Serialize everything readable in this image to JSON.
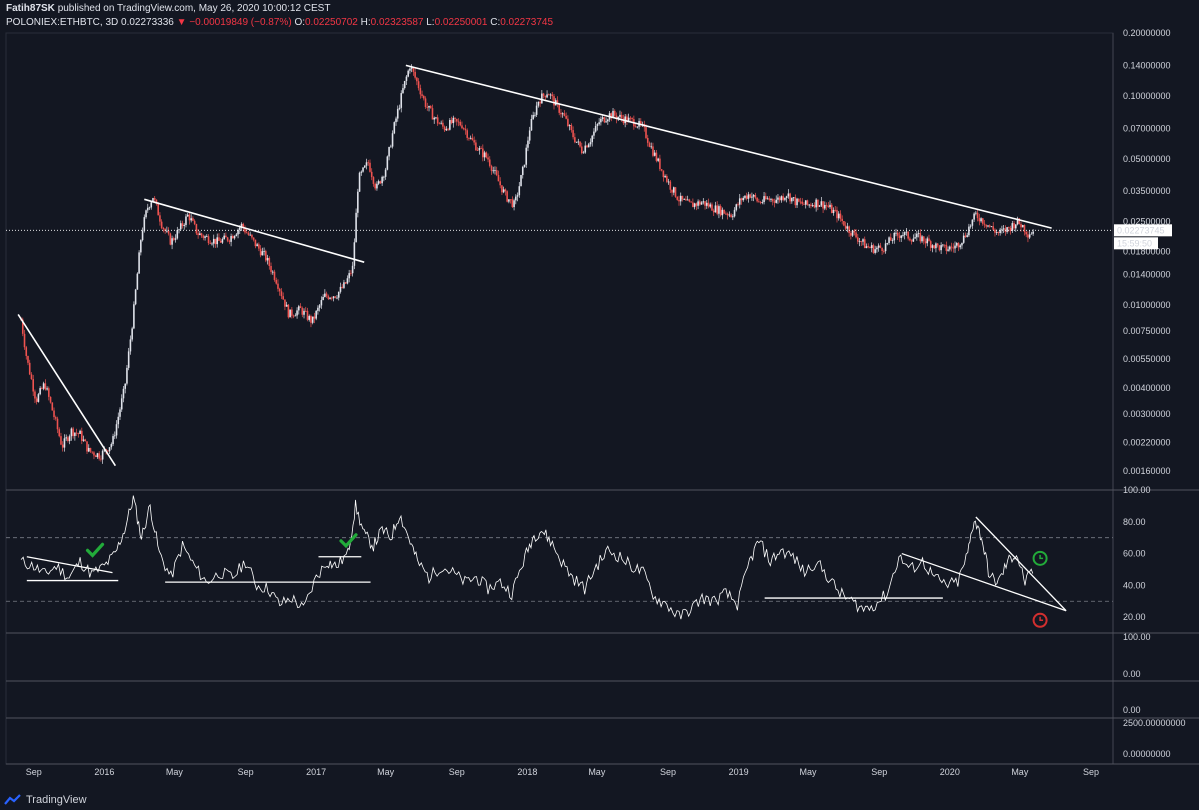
{
  "header": {
    "author": "Fatih87SK",
    "published": "published on TradingView.com, May 26, 2020 10:00:12 CEST",
    "symbol": "POLONIEX:ETHBTC, 3D",
    "last": "0.02273336",
    "change": "−0.00019849 (−0.87%)",
    "o_label": "O:",
    "o": "0.02250702",
    "h_label": "H:",
    "h": "0.02323587",
    "l_label": "L:",
    "l": "0.02250001",
    "c_label": "C:",
    "c": "0.02273745"
  },
  "footer": {
    "brand": "TradingView"
  },
  "colors": {
    "up": "#e0e3eb",
    "down": "#ef5350",
    "bg": "#131722",
    "accent_green": "#22ab3a",
    "accent_red": "#d32f2f"
  },
  "chart_data": [
    {
      "type": "candlestick",
      "scale": "log",
      "ylim": [
        0.0013,
        0.2
      ],
      "yticks": [
        "0.20000000",
        "0.14000000",
        "0.10000000",
        "0.07000000",
        "0.05000000",
        "0.03500000",
        "0.02500000",
        "0.01800000",
        "0.01400000",
        "0.01000000",
        "0.00750000",
        "0.00550000",
        "0.00400000",
        "0.00300000",
        "0.00220000",
        "0.00160000"
      ],
      "last_price_label": "0.02273745",
      "countdown_label": "15:59:50",
      "x_ticks": [
        "Sep",
        "2016",
        "May",
        "Sep",
        "2017",
        "May",
        "Sep",
        "2018",
        "May",
        "Sep",
        "2019",
        "May",
        "Sep",
        "2020",
        "May",
        "Sep"
      ],
      "price_series": [
        [
          "2015-08-10",
          0.0085
        ],
        [
          "2015-08-20",
          0.0055
        ],
        [
          "2015-09-05",
          0.0035
        ],
        [
          "2015-09-20",
          0.0042
        ],
        [
          "2015-10-05",
          0.003
        ],
        [
          "2015-10-20",
          0.0021
        ],
        [
          "2015-11-05",
          0.0025
        ],
        [
          "2015-11-20",
          0.0024
        ],
        [
          "2015-12-05",
          0.002
        ],
        [
          "2015-12-25",
          0.0019
        ],
        [
          "2016-01-15",
          0.0022
        ],
        [
          "2016-02-05",
          0.004
        ],
        [
          "2016-02-20",
          0.009
        ],
        [
          "2016-03-05",
          0.022
        ],
        [
          "2016-03-15",
          0.029
        ],
        [
          "2016-03-25",
          0.033
        ],
        [
          "2016-04-10",
          0.024
        ],
        [
          "2016-04-25",
          0.02
        ],
        [
          "2016-05-10",
          0.023
        ],
        [
          "2016-05-25",
          0.027
        ],
        [
          "2016-06-10",
          0.022
        ],
        [
          "2016-06-25",
          0.021
        ],
        [
          "2016-07-15",
          0.02
        ],
        [
          "2016-08-05",
          0.021
        ],
        [
          "2016-08-25",
          0.024
        ],
        [
          "2016-09-15",
          0.02
        ],
        [
          "2016-10-05",
          0.017
        ],
        [
          "2016-10-25",
          0.013
        ],
        [
          "2016-11-15",
          0.009
        ],
        [
          "2016-12-05",
          0.0095
        ],
        [
          "2016-12-25",
          0.0083
        ],
        [
          "2017-01-15",
          0.011
        ],
        [
          "2017-02-05",
          0.0112
        ],
        [
          "2017-02-20",
          0.0125
        ],
        [
          "2017-03-05",
          0.015
        ],
        [
          "2017-03-15",
          0.04
        ],
        [
          "2017-04-01",
          0.048
        ],
        [
          "2017-04-15",
          0.036
        ],
        [
          "2017-05-01",
          0.045
        ],
        [
          "2017-05-15",
          0.07
        ],
        [
          "2017-06-01",
          0.11
        ],
        [
          "2017-06-12",
          0.14
        ],
        [
          "2017-06-25",
          0.115
        ],
        [
          "2017-07-10",
          0.09
        ],
        [
          "2017-07-25",
          0.078
        ],
        [
          "2017-08-10",
          0.07
        ],
        [
          "2017-08-25",
          0.075
        ],
        [
          "2017-09-10",
          0.073
        ],
        [
          "2017-09-25",
          0.062
        ],
        [
          "2017-10-10",
          0.055
        ],
        [
          "2017-10-25",
          0.05
        ],
        [
          "2017-11-10",
          0.04
        ],
        [
          "2017-11-25",
          0.033
        ],
        [
          "2017-12-10",
          0.03
        ],
        [
          "2017-12-25",
          0.045
        ],
        [
          "2018-01-05",
          0.07
        ],
        [
          "2018-01-20",
          0.095
        ],
        [
          "2018-02-05",
          0.105
        ],
        [
          "2018-02-20",
          0.09
        ],
        [
          "2018-03-05",
          0.08
        ],
        [
          "2018-03-20",
          0.065
        ],
        [
          "2018-04-05",
          0.055
        ],
        [
          "2018-04-20",
          0.062
        ],
        [
          "2018-05-05",
          0.075
        ],
        [
          "2018-05-25",
          0.082
        ],
        [
          "2018-06-15",
          0.078
        ],
        [
          "2018-07-05",
          0.075
        ],
        [
          "2018-07-20",
          0.07
        ],
        [
          "2018-08-05",
          0.055
        ],
        [
          "2018-08-20",
          0.045
        ],
        [
          "2018-09-05",
          0.037
        ],
        [
          "2018-09-20",
          0.032
        ],
        [
          "2018-10-10",
          0.03
        ],
        [
          "2018-10-30",
          0.031
        ],
        [
          "2018-11-20",
          0.029
        ],
        [
          "2018-12-05",
          0.028
        ],
        [
          "2018-12-20",
          0.027
        ],
        [
          "2019-01-05",
          0.032
        ],
        [
          "2019-01-20",
          0.034
        ],
        [
          "2019-02-05",
          0.031
        ],
        [
          "2019-02-20",
          0.032
        ],
        [
          "2019-03-10",
          0.032
        ],
        [
          "2019-03-25",
          0.034
        ],
        [
          "2019-04-10",
          0.031
        ],
        [
          "2019-04-30",
          0.03
        ],
        [
          "2019-05-15",
          0.031
        ],
        [
          "2019-06-01",
          0.03
        ],
        [
          "2019-06-20",
          0.027
        ],
        [
          "2019-07-10",
          0.023
        ],
        [
          "2019-07-25",
          0.021
        ],
        [
          "2019-08-10",
          0.019
        ],
        [
          "2019-08-25",
          0.0185
        ],
        [
          "2019-09-10",
          0.019
        ],
        [
          "2019-09-25",
          0.021
        ],
        [
          "2019-10-10",
          0.022
        ],
        [
          "2019-10-25",
          0.021
        ],
        [
          "2019-11-10",
          0.021
        ],
        [
          "2019-11-25",
          0.02
        ],
        [
          "2019-12-10",
          0.019
        ],
        [
          "2019-12-25",
          0.0185
        ],
        [
          "2020-01-10",
          0.019
        ],
        [
          "2020-01-25",
          0.021
        ],
        [
          "2020-02-05",
          0.024
        ],
        [
          "2020-02-15",
          0.027
        ],
        [
          "2020-03-01",
          0.025
        ],
        [
          "2020-03-15",
          0.023
        ],
        [
          "2020-03-25",
          0.022
        ],
        [
          "2020-04-10",
          0.023
        ],
        [
          "2020-04-25",
          0.025
        ],
        [
          "2020-05-05",
          0.024
        ],
        [
          "2020-05-15",
          0.022
        ],
        [
          "2020-05-26",
          0.0227
        ]
      ],
      "trendlines": [
        [
          [
            "2015-08-05",
            0.009
          ],
          [
            "2016-01-20",
            0.0017
          ]
        ],
        [
          [
            "2016-03-10",
            0.032
          ],
          [
            "2017-03-25",
            0.016
          ]
        ],
        [
          [
            "2017-06-05",
            0.14
          ],
          [
            "2020-06-25",
            0.0233
          ]
        ]
      ]
    },
    {
      "type": "line",
      "name": "RSI",
      "ylim": [
        10,
        100
      ],
      "yticks": [
        "100.00",
        "80.00",
        "60.00",
        "40.00",
        "20.00"
      ],
      "bands": [
        70,
        30
      ],
      "values": [
        [
          "2015-08-10",
          55
        ],
        [
          "2015-09-01",
          52
        ],
        [
          "2015-09-20",
          47
        ],
        [
          "2015-10-10",
          52
        ],
        [
          "2015-11-01",
          45
        ],
        [
          "2015-11-20",
          55
        ],
        [
          "2015-12-10",
          47
        ],
        [
          "2016-01-01",
          52
        ],
        [
          "2016-01-20",
          60
        ],
        [
          "2016-02-05",
          75
        ],
        [
          "2016-02-20",
          95
        ],
        [
          "2016-03-05",
          70
        ],
        [
          "2016-03-20",
          90
        ],
        [
          "2016-04-05",
          60
        ],
        [
          "2016-04-25",
          45
        ],
        [
          "2016-05-15",
          65
        ],
        [
          "2016-06-05",
          52
        ],
        [
          "2016-06-25",
          42
        ],
        [
          "2016-07-20",
          48
        ],
        [
          "2016-08-10",
          45
        ],
        [
          "2016-09-01",
          55
        ],
        [
          "2016-09-20",
          40
        ],
        [
          "2016-10-10",
          38
        ],
        [
          "2016-10-30",
          28
        ],
        [
          "2016-11-20",
          32
        ],
        [
          "2016-12-10",
          25
        ],
        [
          "2017-01-01",
          45
        ],
        [
          "2017-01-20",
          55
        ],
        [
          "2017-02-05",
          52
        ],
        [
          "2017-02-25",
          60
        ],
        [
          "2017-03-10",
          90
        ],
        [
          "2017-03-25",
          72
        ],
        [
          "2017-04-10",
          65
        ],
        [
          "2017-04-25",
          75
        ],
        [
          "2017-05-10",
          70
        ],
        [
          "2017-05-25",
          85
        ],
        [
          "2017-06-10",
          70
        ],
        [
          "2017-06-25",
          55
        ],
        [
          "2017-07-15",
          45
        ],
        [
          "2017-08-05",
          52
        ],
        [
          "2017-08-25",
          48
        ],
        [
          "2017-09-15",
          42
        ],
        [
          "2017-10-05",
          45
        ],
        [
          "2017-10-25",
          38
        ],
        [
          "2017-11-15",
          42
        ],
        [
          "2017-12-05",
          35
        ],
        [
          "2017-12-25",
          55
        ],
        [
          "2018-01-10",
          70
        ],
        [
          "2018-01-25",
          75
        ],
        [
          "2018-02-10",
          68
        ],
        [
          "2018-03-01",
          55
        ],
        [
          "2018-03-20",
          45
        ],
        [
          "2018-04-10",
          38
        ],
        [
          "2018-04-30",
          52
        ],
        [
          "2018-05-20",
          62
        ],
        [
          "2018-06-10",
          58
        ],
        [
          "2018-06-30",
          52
        ],
        [
          "2018-07-20",
          48
        ],
        [
          "2018-08-10",
          32
        ],
        [
          "2018-08-30",
          28
        ],
        [
          "2018-09-20",
          20
        ],
        [
          "2018-10-10",
          25
        ],
        [
          "2018-10-30",
          32
        ],
        [
          "2018-11-20",
          30
        ],
        [
          "2018-12-10",
          35
        ],
        [
          "2018-12-30",
          28
        ],
        [
          "2019-01-20",
          55
        ],
        [
          "2019-02-05",
          68
        ],
        [
          "2019-02-25",
          55
        ],
        [
          "2019-03-15",
          62
        ],
        [
          "2019-04-05",
          58
        ],
        [
          "2019-04-25",
          48
        ],
        [
          "2019-05-15",
          55
        ],
        [
          "2019-06-05",
          45
        ],
        [
          "2019-06-25",
          35
        ],
        [
          "2019-07-15",
          30
        ],
        [
          "2019-08-05",
          25
        ],
        [
          "2019-08-25",
          28
        ],
        [
          "2019-09-15",
          35
        ],
        [
          "2019-10-05",
          58
        ],
        [
          "2019-10-25",
          50
        ],
        [
          "2019-11-15",
          55
        ],
        [
          "2019-12-05",
          45
        ],
        [
          "2019-12-25",
          40
        ],
        [
          "2020-01-15",
          42
        ],
        [
          "2020-02-01",
          60
        ],
        [
          "2020-02-12",
          82
        ],
        [
          "2020-02-25",
          70
        ],
        [
          "2020-03-10",
          45
        ],
        [
          "2020-03-25",
          42
        ],
        [
          "2020-04-10",
          55
        ],
        [
          "2020-04-25",
          60
        ],
        [
          "2020-05-10",
          42
        ],
        [
          "2020-05-26",
          50
        ]
      ],
      "trendlines": [
        [
          [
            "2015-08-20",
            58
          ],
          [
            "2016-01-15",
            48
          ]
        ],
        [
          [
            "2015-08-20",
            43
          ],
          [
            "2016-01-25",
            43
          ]
        ],
        [
          [
            "2016-04-15",
            42
          ],
          [
            "2017-04-05",
            42
          ]
        ],
        [
          [
            "2017-01-05",
            58
          ],
          [
            "2017-03-20",
            58
          ]
        ],
        [
          [
            "2019-02-15",
            32
          ],
          [
            "2019-12-20",
            32
          ]
        ],
        [
          [
            "2019-10-10",
            60
          ],
          [
            "2020-07-20",
            24
          ]
        ],
        [
          [
            "2020-02-15",
            83
          ],
          [
            "2020-07-20",
            24
          ]
        ]
      ],
      "checkmarks": [
        [
          "2015-12-15",
          62
        ],
        [
          "2017-02-25",
          68
        ]
      ],
      "clock_icons": [
        {
          "date": "2020-06-05",
          "value": 57,
          "color": "#22ab3a"
        },
        {
          "date": "2020-06-05",
          "value": 18,
          "color": "#d32f2f"
        }
      ]
    },
    {
      "type": "line",
      "name": "empty pane",
      "yticks": [
        "100.00",
        "0.00"
      ]
    },
    {
      "type": "line",
      "name": "empty pane",
      "yticks": [
        "0.00"
      ]
    },
    {
      "type": "line",
      "name": "empty pane",
      "yticks": [
        "2500.00000000",
        "0.00000000"
      ]
    }
  ]
}
